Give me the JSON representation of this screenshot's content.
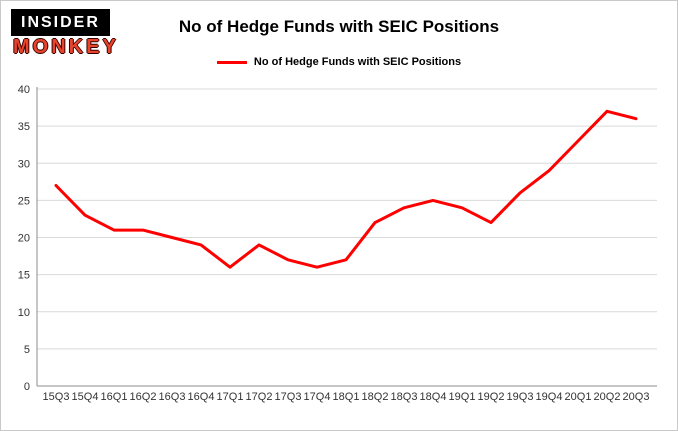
{
  "logo": {
    "line1": "INSIDER",
    "line2": "MONKEY"
  },
  "header": {
    "title": "No of Hedge Funds with SEIC Positions"
  },
  "legend": {
    "label": "No of Hedge Funds with SEIC Positions"
  },
  "colors": {
    "line": "#ff0000",
    "grid": "#d9d9d9",
    "axis": "#8c8c8c",
    "tick_text": "#333333",
    "logo_red": "#e8442c"
  },
  "chart_data": {
    "type": "line",
    "title": "No of Hedge Funds with SEIC Positions",
    "xlabel": "",
    "ylabel": "",
    "categories": [
      "15Q3",
      "15Q4",
      "16Q1",
      "16Q2",
      "16Q3",
      "16Q4",
      "17Q1",
      "17Q2",
      "17Q3",
      "17Q4",
      "18Q1",
      "18Q2",
      "18Q3",
      "18Q4",
      "19Q1",
      "19Q2",
      "19Q3",
      "19Q4",
      "20Q1",
      "20Q2",
      "20Q3"
    ],
    "values": [
      27,
      23,
      21,
      21,
      20,
      19,
      16,
      19,
      17,
      16,
      17,
      22,
      24,
      25,
      24,
      22,
      26,
      29,
      33,
      37,
      36
    ],
    "ylim": [
      0,
      40
    ],
    "yticks": [
      0,
      5,
      10,
      15,
      20,
      25,
      30,
      35,
      40
    ],
    "grid": "horizontal",
    "legend_position": "top",
    "line_color": "#ff0000",
    "line_width": 3
  }
}
